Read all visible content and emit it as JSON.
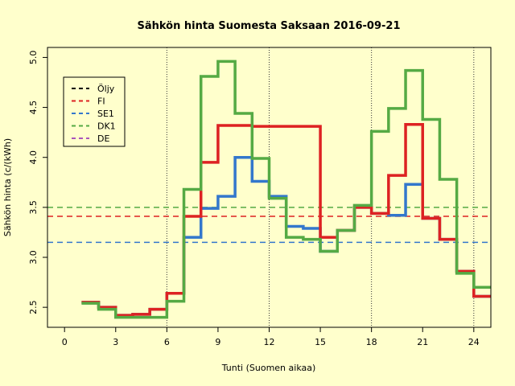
{
  "chart_data": {
    "type": "line",
    "title": "Sähkön hinta Suomesta Saksaan 2016-09-21",
    "xlabel": "Tunti (Suomen aikaa)",
    "ylabel": "Sähkön hinta (c/(kWh)",
    "xlim": [
      -1,
      25
    ],
    "ylim": [
      2.3,
      5.1
    ],
    "x_ticks": [
      0,
      3,
      6,
      9,
      12,
      15,
      18,
      21,
      24
    ],
    "y_ticks": [
      2.5,
      3.0,
      3.5,
      4.0,
      4.5,
      5.0
    ],
    "y_tick_labels": [
      "2.5",
      "3.0",
      "3.5",
      "4.0",
      "4.5",
      "5.0"
    ],
    "vertical_lines": [
      6,
      12,
      18,
      24
    ],
    "legend_position": "top-left",
    "series": [
      {
        "name": "Öljy",
        "color": "#000000",
        "x": [],
        "values": []
      },
      {
        "name": "FI",
        "color": "#dd2222",
        "x": [
          1,
          2,
          3,
          4,
          5,
          6,
          7,
          8,
          9,
          10,
          11,
          12,
          13,
          14,
          15,
          16,
          17,
          18,
          19,
          20,
          21,
          22,
          23,
          24,
          25
        ],
        "values": [
          2.55,
          2.5,
          2.42,
          2.43,
          2.48,
          2.64,
          3.41,
          3.95,
          4.32,
          4.32,
          4.31,
          4.31,
          4.31,
          4.31,
          3.2,
          3.27,
          3.5,
          3.44,
          3.82,
          4.33,
          3.39,
          3.18,
          2.86,
          2.61,
          2.61
        ]
      },
      {
        "name": "SE1",
        "color": "#3377cc",
        "x": [
          1,
          2,
          3,
          4,
          5,
          6,
          7,
          8,
          9,
          10,
          11,
          12,
          13,
          14,
          15,
          16,
          17,
          18,
          19,
          20,
          21,
          22,
          23,
          24,
          25
        ],
        "values": [
          2.55,
          2.5,
          2.42,
          2.43,
          2.48,
          2.64,
          3.2,
          3.49,
          3.61,
          4.0,
          3.76,
          3.61,
          3.31,
          3.29,
          3.06,
          3.27,
          3.5,
          3.44,
          3.42,
          3.73,
          3.39,
          3.18,
          2.86,
          2.61,
          2.61
        ]
      },
      {
        "name": "DK1",
        "color": "#55aa44",
        "x": [
          1,
          2,
          3,
          4,
          5,
          6,
          7,
          8,
          9,
          10,
          11,
          12,
          13,
          14,
          15,
          16,
          17,
          18,
          19,
          20,
          21,
          22,
          23,
          24,
          25
        ],
        "values": [
          2.54,
          2.48,
          2.4,
          2.4,
          2.4,
          2.56,
          3.68,
          4.81,
          4.96,
          4.44,
          3.99,
          3.59,
          3.2,
          3.18,
          3.06,
          3.27,
          3.52,
          4.26,
          4.49,
          4.87,
          4.38,
          3.78,
          2.84,
          2.7,
          2.7
        ]
      },
      {
        "name": "DE",
        "color": "#aa55bb",
        "x": [],
        "values": []
      }
    ],
    "reference_lines": [
      {
        "series": "FI",
        "value": 3.41,
        "color": "#dd2222"
      },
      {
        "series": "SE1",
        "value": 3.15,
        "color": "#3377cc"
      },
      {
        "series": "DK1",
        "value": 3.5,
        "color": "#55aa44"
      }
    ]
  }
}
